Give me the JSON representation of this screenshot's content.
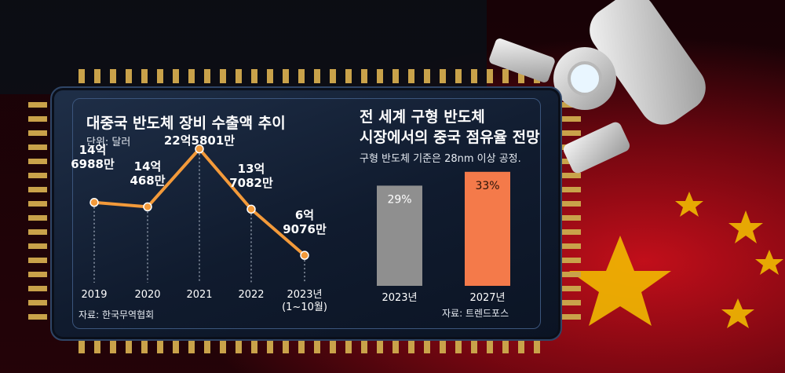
{
  "chart_data": [
    {
      "type": "line",
      "title": "대중국 반도체 장비 수출액 추이",
      "unit_label": "단위: 달러",
      "source": "자료: 한국무역협회",
      "categories": [
        "2019",
        "2020",
        "2021",
        "2022",
        "2023년"
      ],
      "category_notes": [
        "",
        "",
        "",
        "",
        "(1~10월)"
      ],
      "values": [
        1469880000,
        1404680000,
        2258010000,
        1370820000,
        690760000
      ],
      "data_labels": [
        [
          "14억",
          "6988만"
        ],
        [
          "14억",
          "468만"
        ],
        [
          "22억5801만"
        ],
        [
          "13억",
          "7082만"
        ],
        [
          "6억",
          "9076만"
        ]
      ],
      "line_color": "#f39a3a"
    },
    {
      "type": "bar",
      "title_lines": [
        "전 세계 구형 반도체",
        "시장에서의 중국 점유율 전망"
      ],
      "subtitle": "구형 반도체 기준은 28nm 이상 공정.",
      "source": "자료: 트렌드포스",
      "categories": [
        "2023년",
        "2027년"
      ],
      "values": [
        29,
        33
      ],
      "data_labels": [
        "29%",
        "33%"
      ],
      "colors": [
        "#8f8f8f",
        "#f47a4a"
      ]
    }
  ]
}
